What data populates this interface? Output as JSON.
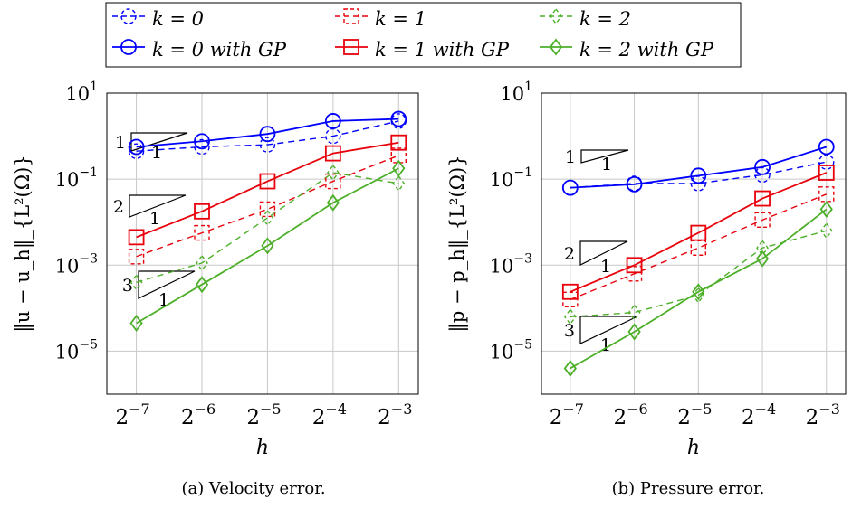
{
  "legend": {
    "entries": [
      {
        "label": "k = 0",
        "series": "k0",
        "dashed": true
      },
      {
        "label": "k = 1",
        "series": "k1",
        "dashed": true
      },
      {
        "label": "k = 2",
        "series": "k2",
        "dashed": true
      },
      {
        "label": "k = 0 with GP",
        "series": "k0",
        "dashed": false
      },
      {
        "label": "k = 1 with GP",
        "series": "k1",
        "dashed": false
      },
      {
        "label": "k = 2 with GP",
        "series": "k2",
        "dashed": false
      }
    ]
  },
  "colors": {
    "k0": "#0000ff",
    "k1": "#e8000b",
    "k2": "#4caf28"
  },
  "markers": {
    "k0": "circle",
    "k1": "square",
    "k2": "diamond"
  },
  "chart_data": [
    {
      "type": "line",
      "caption": "(a) Velocity error.",
      "xlabel": "h",
      "ylabel": "‖u − u_h‖_{L²(Ω)}",
      "xscale": "log2",
      "yscale": "log10",
      "x": [
        -7,
        -6,
        -5,
        -4,
        -3
      ],
      "xtick_labels": [
        "2^-7",
        "2^-6",
        "2^-5",
        "2^-4",
        "2^-3"
      ],
      "ylim_exp": [
        -6,
        1
      ],
      "ytick_exps": [
        1,
        -1,
        -3,
        -5
      ],
      "grid": true,
      "slope_labels": [
        "1",
        "1",
        "2",
        "1",
        "3",
        "1"
      ],
      "series": [
        {
          "name": "k = 0",
          "key": "k0",
          "dashed": true,
          "log10_y": [
            -0.35,
            -0.25,
            -0.2,
            0.0,
            0.35
          ]
        },
        {
          "name": "k = 1",
          "key": "k1",
          "dashed": true,
          "log10_y": [
            -2.8,
            -2.25,
            -1.7,
            -1.05,
            -0.45
          ]
        },
        {
          "name": "k = 2",
          "key": "k2",
          "dashed": true,
          "log10_y": [
            -3.4,
            -2.95,
            -1.9,
            -0.85,
            -1.1
          ]
        },
        {
          "name": "k = 0 with GP",
          "key": "k0",
          "dashed": false,
          "log10_y": [
            -0.25,
            -0.12,
            0.05,
            0.35,
            0.4
          ]
        },
        {
          "name": "k = 1 with GP",
          "key": "k1",
          "dashed": false,
          "log10_y": [
            -2.35,
            -1.75,
            -1.05,
            -0.4,
            -0.15
          ]
        },
        {
          "name": "k = 2 with GP",
          "key": "k2",
          "dashed": false,
          "log10_y": [
            -4.35,
            -3.45,
            -2.55,
            -1.55,
            -0.75
          ]
        }
      ]
    },
    {
      "type": "line",
      "caption": "(b) Pressure error.",
      "xlabel": "h",
      "ylabel": "‖p − p_h‖_{L²(Ω)}",
      "xscale": "log2",
      "yscale": "log10",
      "x": [
        -7,
        -6,
        -5,
        -4,
        -3
      ],
      "xtick_labels": [
        "2^-7",
        "2^-6",
        "2^-5",
        "2^-4",
        "2^-3"
      ],
      "ylim_exp": [
        -6,
        1
      ],
      "ytick_exps": [
        1,
        -1,
        -3,
        -5
      ],
      "grid": true,
      "slope_labels": [
        "1",
        "1",
        "2",
        "1",
        "3",
        "1"
      ],
      "series": [
        {
          "name": "k = 0",
          "key": "k0",
          "dashed": true,
          "log10_y": [
            -1.2,
            -1.1,
            -1.1,
            -0.9,
            -0.6
          ]
        },
        {
          "name": "k = 1",
          "key": "k1",
          "dashed": true,
          "log10_y": [
            -3.8,
            -3.2,
            -2.6,
            -1.95,
            -1.35
          ]
        },
        {
          "name": "k = 2",
          "key": "k2",
          "dashed": true,
          "log10_y": [
            -4.2,
            -4.1,
            -3.7,
            -2.6,
            -2.2
          ]
        },
        {
          "name": "k = 0 with GP",
          "key": "k0",
          "dashed": false,
          "log10_y": [
            -1.2,
            -1.12,
            -0.92,
            -0.72,
            -0.25
          ]
        },
        {
          "name": "k = 1 with GP",
          "key": "k1",
          "dashed": false,
          "log10_y": [
            -3.62,
            -3.0,
            -2.25,
            -1.45,
            -0.85
          ]
        },
        {
          "name": "k = 2 with GP",
          "key": "k2",
          "dashed": false,
          "log10_y": [
            -5.4,
            -4.55,
            -3.62,
            -2.85,
            -1.7
          ]
        }
      ]
    }
  ]
}
